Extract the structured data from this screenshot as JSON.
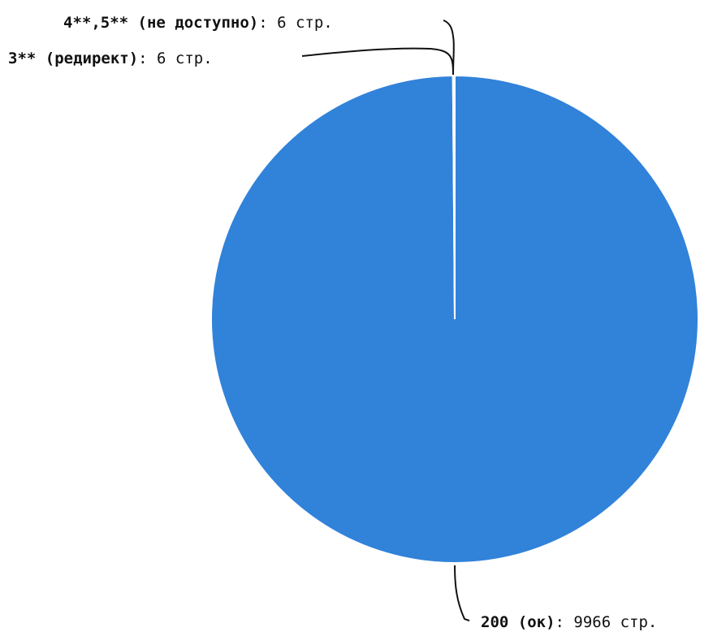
{
  "chart_data": {
    "type": "pie",
    "series": [
      {
        "name": "200 (ок)",
        "value": 9966,
        "suffix": ": 9966 стр.",
        "color": "#3182d9"
      },
      {
        "name": "3** (редирект)",
        "value": 6,
        "suffix": ": 6 стр.",
        "color": "#3182d9"
      },
      {
        "name": "4**,5** (не доступно)",
        "value": 6,
        "suffix": ": 6 стр.",
        "color": "#3182d9"
      }
    ],
    "colors": {
      "slice": "#3182d9",
      "divider": "#ffffff",
      "leader": "#111111"
    }
  }
}
